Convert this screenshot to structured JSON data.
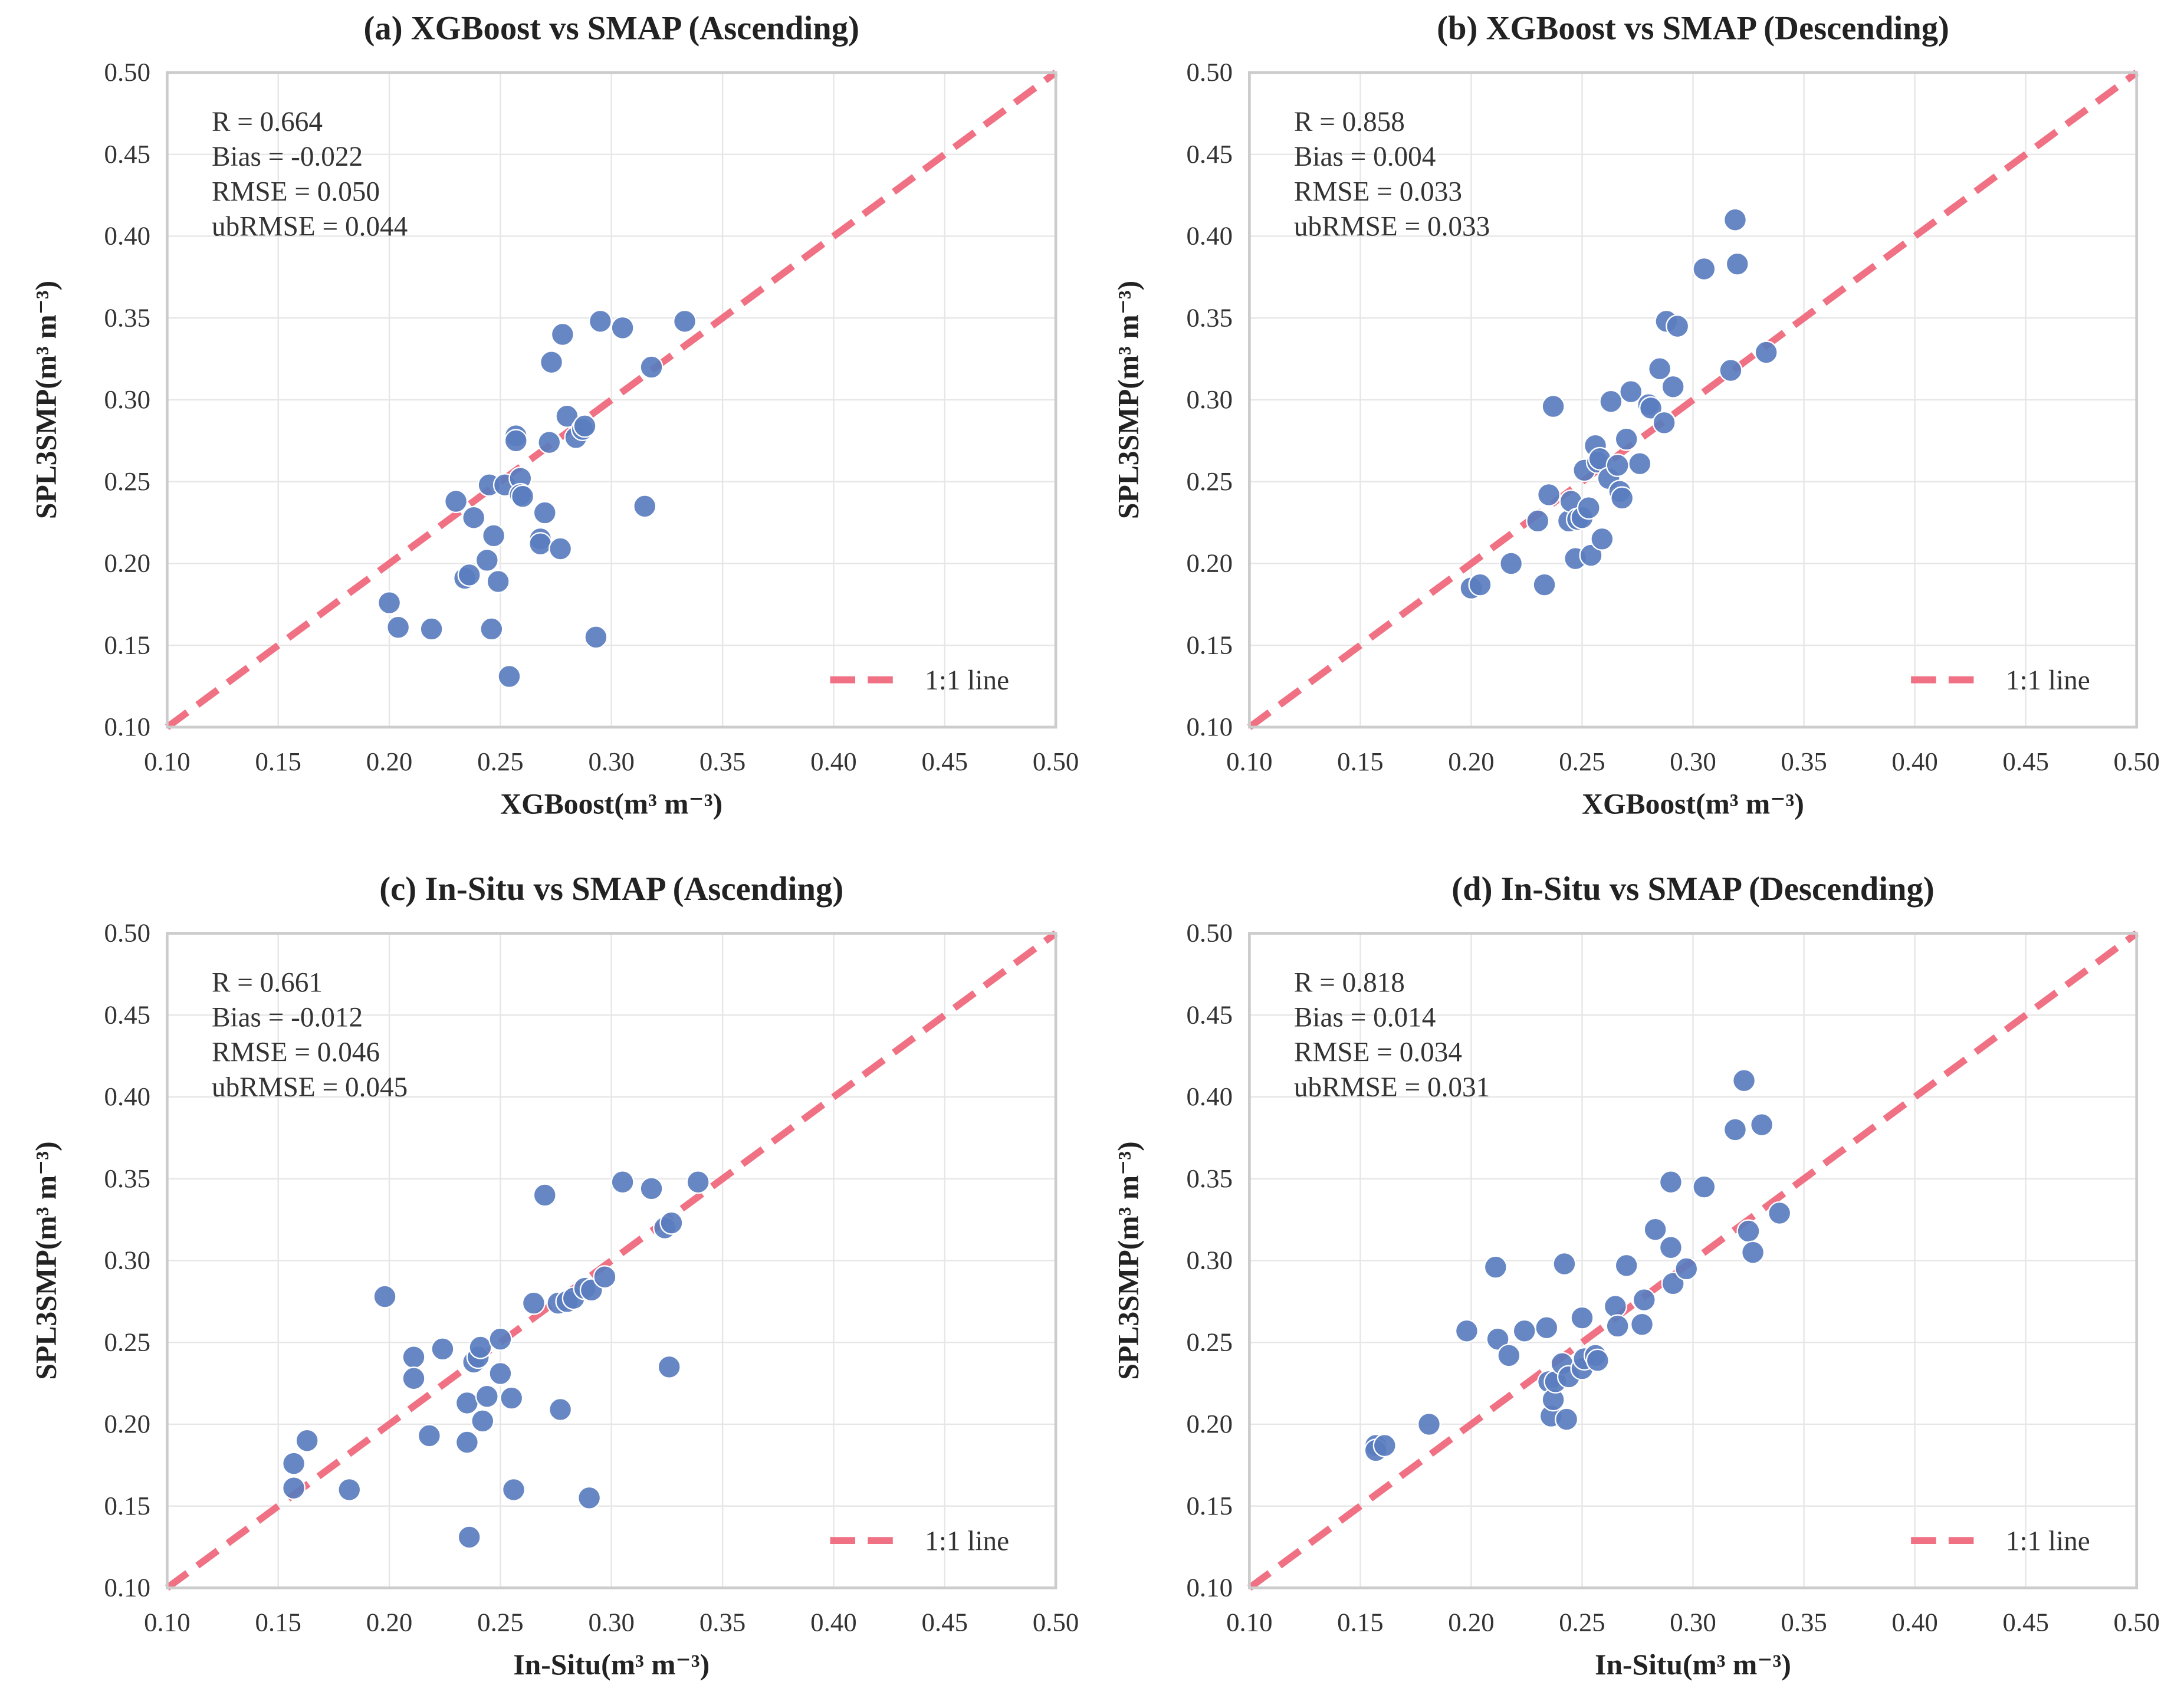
{
  "colors": {
    "point": "#5a7dbf",
    "point_edge": "#ffffff",
    "line": "#f07183",
    "grid": "#e6e6e6",
    "frame": "#cccccc"
  },
  "chart_data": [
    {
      "type": "scatter",
      "title": "(a) XGBoost vs SMAP (Ascending)",
      "xlabel": "XGBoost(m³ m⁻³)",
      "ylabel": "SPL3SMP(m³ m⁻³)",
      "xlim": [
        0.1,
        0.5
      ],
      "ylim": [
        0.1,
        0.5
      ],
      "xticks": [
        "0.10",
        "0.15",
        "0.20",
        "0.25",
        "0.30",
        "0.35",
        "0.40",
        "0.45",
        "0.50"
      ],
      "yticks": [
        "0.10",
        "0.15",
        "0.20",
        "0.25",
        "0.30",
        "0.35",
        "0.40",
        "0.45",
        "0.50"
      ],
      "stats": [
        "R = 0.664",
        "Bias = -0.022",
        "RMSE = 0.050",
        "ubRMSE = 0.044"
      ],
      "legend": "1:1 line",
      "legend_position": "bottom-right",
      "grid": true,
      "points": [
        [
          0.2,
          0.176
        ],
        [
          0.204,
          0.161
        ],
        [
          0.219,
          0.16
        ],
        [
          0.23,
          0.238
        ],
        [
          0.234,
          0.191
        ],
        [
          0.236,
          0.193
        ],
        [
          0.238,
          0.228
        ],
        [
          0.244,
          0.202
        ],
        [
          0.245,
          0.248
        ],
        [
          0.246,
          0.16
        ],
        [
          0.247,
          0.217
        ],
        [
          0.249,
          0.189
        ],
        [
          0.254,
          0.131
        ],
        [
          0.252,
          0.248
        ],
        [
          0.257,
          0.278
        ],
        [
          0.257,
          0.275
        ],
        [
          0.259,
          0.252
        ],
        [
          0.259,
          0.242
        ],
        [
          0.26,
          0.241
        ],
        [
          0.268,
          0.215
        ],
        [
          0.268,
          0.212
        ],
        [
          0.27,
          0.231
        ],
        [
          0.272,
          0.274
        ],
        [
          0.273,
          0.323
        ],
        [
          0.277,
          0.209
        ],
        [
          0.278,
          0.34
        ],
        [
          0.28,
          0.29
        ],
        [
          0.284,
          0.277
        ],
        [
          0.287,
          0.282
        ],
        [
          0.288,
          0.284
        ],
        [
          0.293,
          0.155
        ],
        [
          0.295,
          0.348
        ],
        [
          0.305,
          0.344
        ],
        [
          0.315,
          0.235
        ],
        [
          0.318,
          0.32
        ],
        [
          0.333,
          0.348
        ]
      ]
    },
    {
      "type": "scatter",
      "title": "(b) XGBoost vs SMAP (Descending)",
      "xlabel": "XGBoost(m³ m⁻³)",
      "ylabel": "SPL3SMP(m³ m⁻³)",
      "xlim": [
        0.1,
        0.5
      ],
      "ylim": [
        0.1,
        0.5
      ],
      "xticks": [
        "0.10",
        "0.15",
        "0.20",
        "0.25",
        "0.30",
        "0.35",
        "0.40",
        "0.45",
        "0.50"
      ],
      "yticks": [
        "0.10",
        "0.15",
        "0.20",
        "0.25",
        "0.30",
        "0.35",
        "0.40",
        "0.45",
        "0.50"
      ],
      "stats": [
        "R = 0.858",
        "Bias = 0.004",
        "RMSE = 0.033",
        "ubRMSE = 0.033"
      ],
      "legend": "1:1 line",
      "legend_position": "bottom-right",
      "grid": true,
      "points": [
        [
          0.2,
          0.185
        ],
        [
          0.204,
          0.187
        ],
        [
          0.218,
          0.2
        ],
        [
          0.23,
          0.226
        ],
        [
          0.233,
          0.187
        ],
        [
          0.235,
          0.242
        ],
        [
          0.237,
          0.296
        ],
        [
          0.244,
          0.226
        ],
        [
          0.245,
          0.238
        ],
        [
          0.247,
          0.203
        ],
        [
          0.248,
          0.227
        ],
        [
          0.25,
          0.228
        ],
        [
          0.251,
          0.257
        ],
        [
          0.253,
          0.234
        ],
        [
          0.254,
          0.205
        ],
        [
          0.256,
          0.272
        ],
        [
          0.257,
          0.262
        ],
        [
          0.258,
          0.264
        ],
        [
          0.259,
          0.215
        ],
        [
          0.262,
          0.252
        ],
        [
          0.263,
          0.299
        ],
        [
          0.266,
          0.26
        ],
        [
          0.267,
          0.244
        ],
        [
          0.268,
          0.24
        ],
        [
          0.27,
          0.276
        ],
        [
          0.272,
          0.305
        ],
        [
          0.276,
          0.261
        ],
        [
          0.28,
          0.297
        ],
        [
          0.281,
          0.295
        ],
        [
          0.285,
          0.319
        ],
        [
          0.287,
          0.286
        ],
        [
          0.288,
          0.348
        ],
        [
          0.291,
          0.308
        ],
        [
          0.293,
          0.345
        ],
        [
          0.305,
          0.38
        ],
        [
          0.317,
          0.318
        ],
        [
          0.319,
          0.41
        ],
        [
          0.32,
          0.383
        ],
        [
          0.333,
          0.329
        ]
      ]
    },
    {
      "type": "scatter",
      "title": "(c) In-Situ vs SMAP (Ascending)",
      "xlabel": "In-Situ(m³ m⁻³)",
      "ylabel": "SPL3SMP(m³ m⁻³)",
      "xlim": [
        0.1,
        0.5
      ],
      "ylim": [
        0.1,
        0.5
      ],
      "xticks": [
        "0.10",
        "0.15",
        "0.20",
        "0.25",
        "0.30",
        "0.35",
        "0.40",
        "0.45",
        "0.50"
      ],
      "yticks": [
        "0.10",
        "0.15",
        "0.20",
        "0.25",
        "0.30",
        "0.35",
        "0.40",
        "0.45",
        "0.50"
      ],
      "stats": [
        "R = 0.661",
        "Bias = -0.012",
        "RMSE = 0.046",
        "ubRMSE = 0.045"
      ],
      "legend": "1:1 line",
      "legend_position": "bottom-right",
      "grid": true,
      "points": [
        [
          0.157,
          0.176
        ],
        [
          0.157,
          0.161
        ],
        [
          0.163,
          0.19
        ],
        [
          0.182,
          0.16
        ],
        [
          0.198,
          0.278
        ],
        [
          0.211,
          0.241
        ],
        [
          0.211,
          0.228
        ],
        [
          0.218,
          0.193
        ],
        [
          0.224,
          0.246
        ],
        [
          0.235,
          0.213
        ],
        [
          0.235,
          0.189
        ],
        [
          0.236,
          0.131
        ],
        [
          0.238,
          0.238
        ],
        [
          0.24,
          0.241
        ],
        [
          0.241,
          0.247
        ],
        [
          0.242,
          0.202
        ],
        [
          0.244,
          0.217
        ],
        [
          0.25,
          0.252
        ],
        [
          0.25,
          0.231
        ],
        [
          0.255,
          0.216
        ],
        [
          0.256,
          0.16
        ],
        [
          0.265,
          0.274
        ],
        [
          0.27,
          0.34
        ],
        [
          0.276,
          0.274
        ],
        [
          0.277,
          0.209
        ],
        [
          0.28,
          0.275
        ],
        [
          0.283,
          0.277
        ],
        [
          0.288,
          0.283
        ],
        [
          0.29,
          0.155
        ],
        [
          0.291,
          0.282
        ],
        [
          0.297,
          0.29
        ],
        [
          0.305,
          0.348
        ],
        [
          0.318,
          0.344
        ],
        [
          0.324,
          0.32
        ],
        [
          0.326,
          0.235
        ],
        [
          0.327,
          0.323
        ],
        [
          0.339,
          0.348
        ]
      ]
    },
    {
      "type": "scatter",
      "title": "(d) In-Situ vs SMAP (Descending)",
      "xlabel": "In-Situ(m³ m⁻³)",
      "ylabel": "SPL3SMP(m³ m⁻³)",
      "xlim": [
        0.1,
        0.5
      ],
      "ylim": [
        0.1,
        0.5
      ],
      "xticks": [
        "0.10",
        "0.15",
        "0.20",
        "0.25",
        "0.30",
        "0.35",
        "0.40",
        "0.45",
        "0.50"
      ],
      "yticks": [
        "0.10",
        "0.15",
        "0.20",
        "0.25",
        "0.30",
        "0.35",
        "0.40",
        "0.45",
        "0.50"
      ],
      "stats": [
        "R = 0.818",
        "Bias = 0.014",
        "RMSE = 0.034",
        "ubRMSE = 0.031"
      ],
      "legend": "1:1 line",
      "legend_position": "bottom-right",
      "grid": true,
      "points": [
        [
          0.157,
          0.187
        ],
        [
          0.157,
          0.184
        ],
        [
          0.161,
          0.187
        ],
        [
          0.181,
          0.2
        ],
        [
          0.198,
          0.257
        ],
        [
          0.211,
          0.296
        ],
        [
          0.212,
          0.252
        ],
        [
          0.217,
          0.242
        ],
        [
          0.224,
          0.257
        ],
        [
          0.234,
          0.259
        ],
        [
          0.235,
          0.226
        ],
        [
          0.236,
          0.205
        ],
        [
          0.237,
          0.215
        ],
        [
          0.238,
          0.226
        ],
        [
          0.241,
          0.237
        ],
        [
          0.242,
          0.298
        ],
        [
          0.243,
          0.203
        ],
        [
          0.244,
          0.229
        ],
        [
          0.25,
          0.265
        ],
        [
          0.25,
          0.234
        ],
        [
          0.251,
          0.24
        ],
        [
          0.256,
          0.242
        ],
        [
          0.257,
          0.239
        ],
        [
          0.265,
          0.272
        ],
        [
          0.266,
          0.26
        ],
        [
          0.27,
          0.297
        ],
        [
          0.277,
          0.261
        ],
        [
          0.278,
          0.276
        ],
        [
          0.283,
          0.319
        ],
        [
          0.29,
          0.348
        ],
        [
          0.29,
          0.308
        ],
        [
          0.291,
          0.286
        ],
        [
          0.297,
          0.295
        ],
        [
          0.305,
          0.345
        ],
        [
          0.319,
          0.38
        ],
        [
          0.323,
          0.41
        ],
        [
          0.325,
          0.318
        ],
        [
          0.327,
          0.305
        ],
        [
          0.331,
          0.383
        ],
        [
          0.339,
          0.329
        ]
      ]
    }
  ]
}
